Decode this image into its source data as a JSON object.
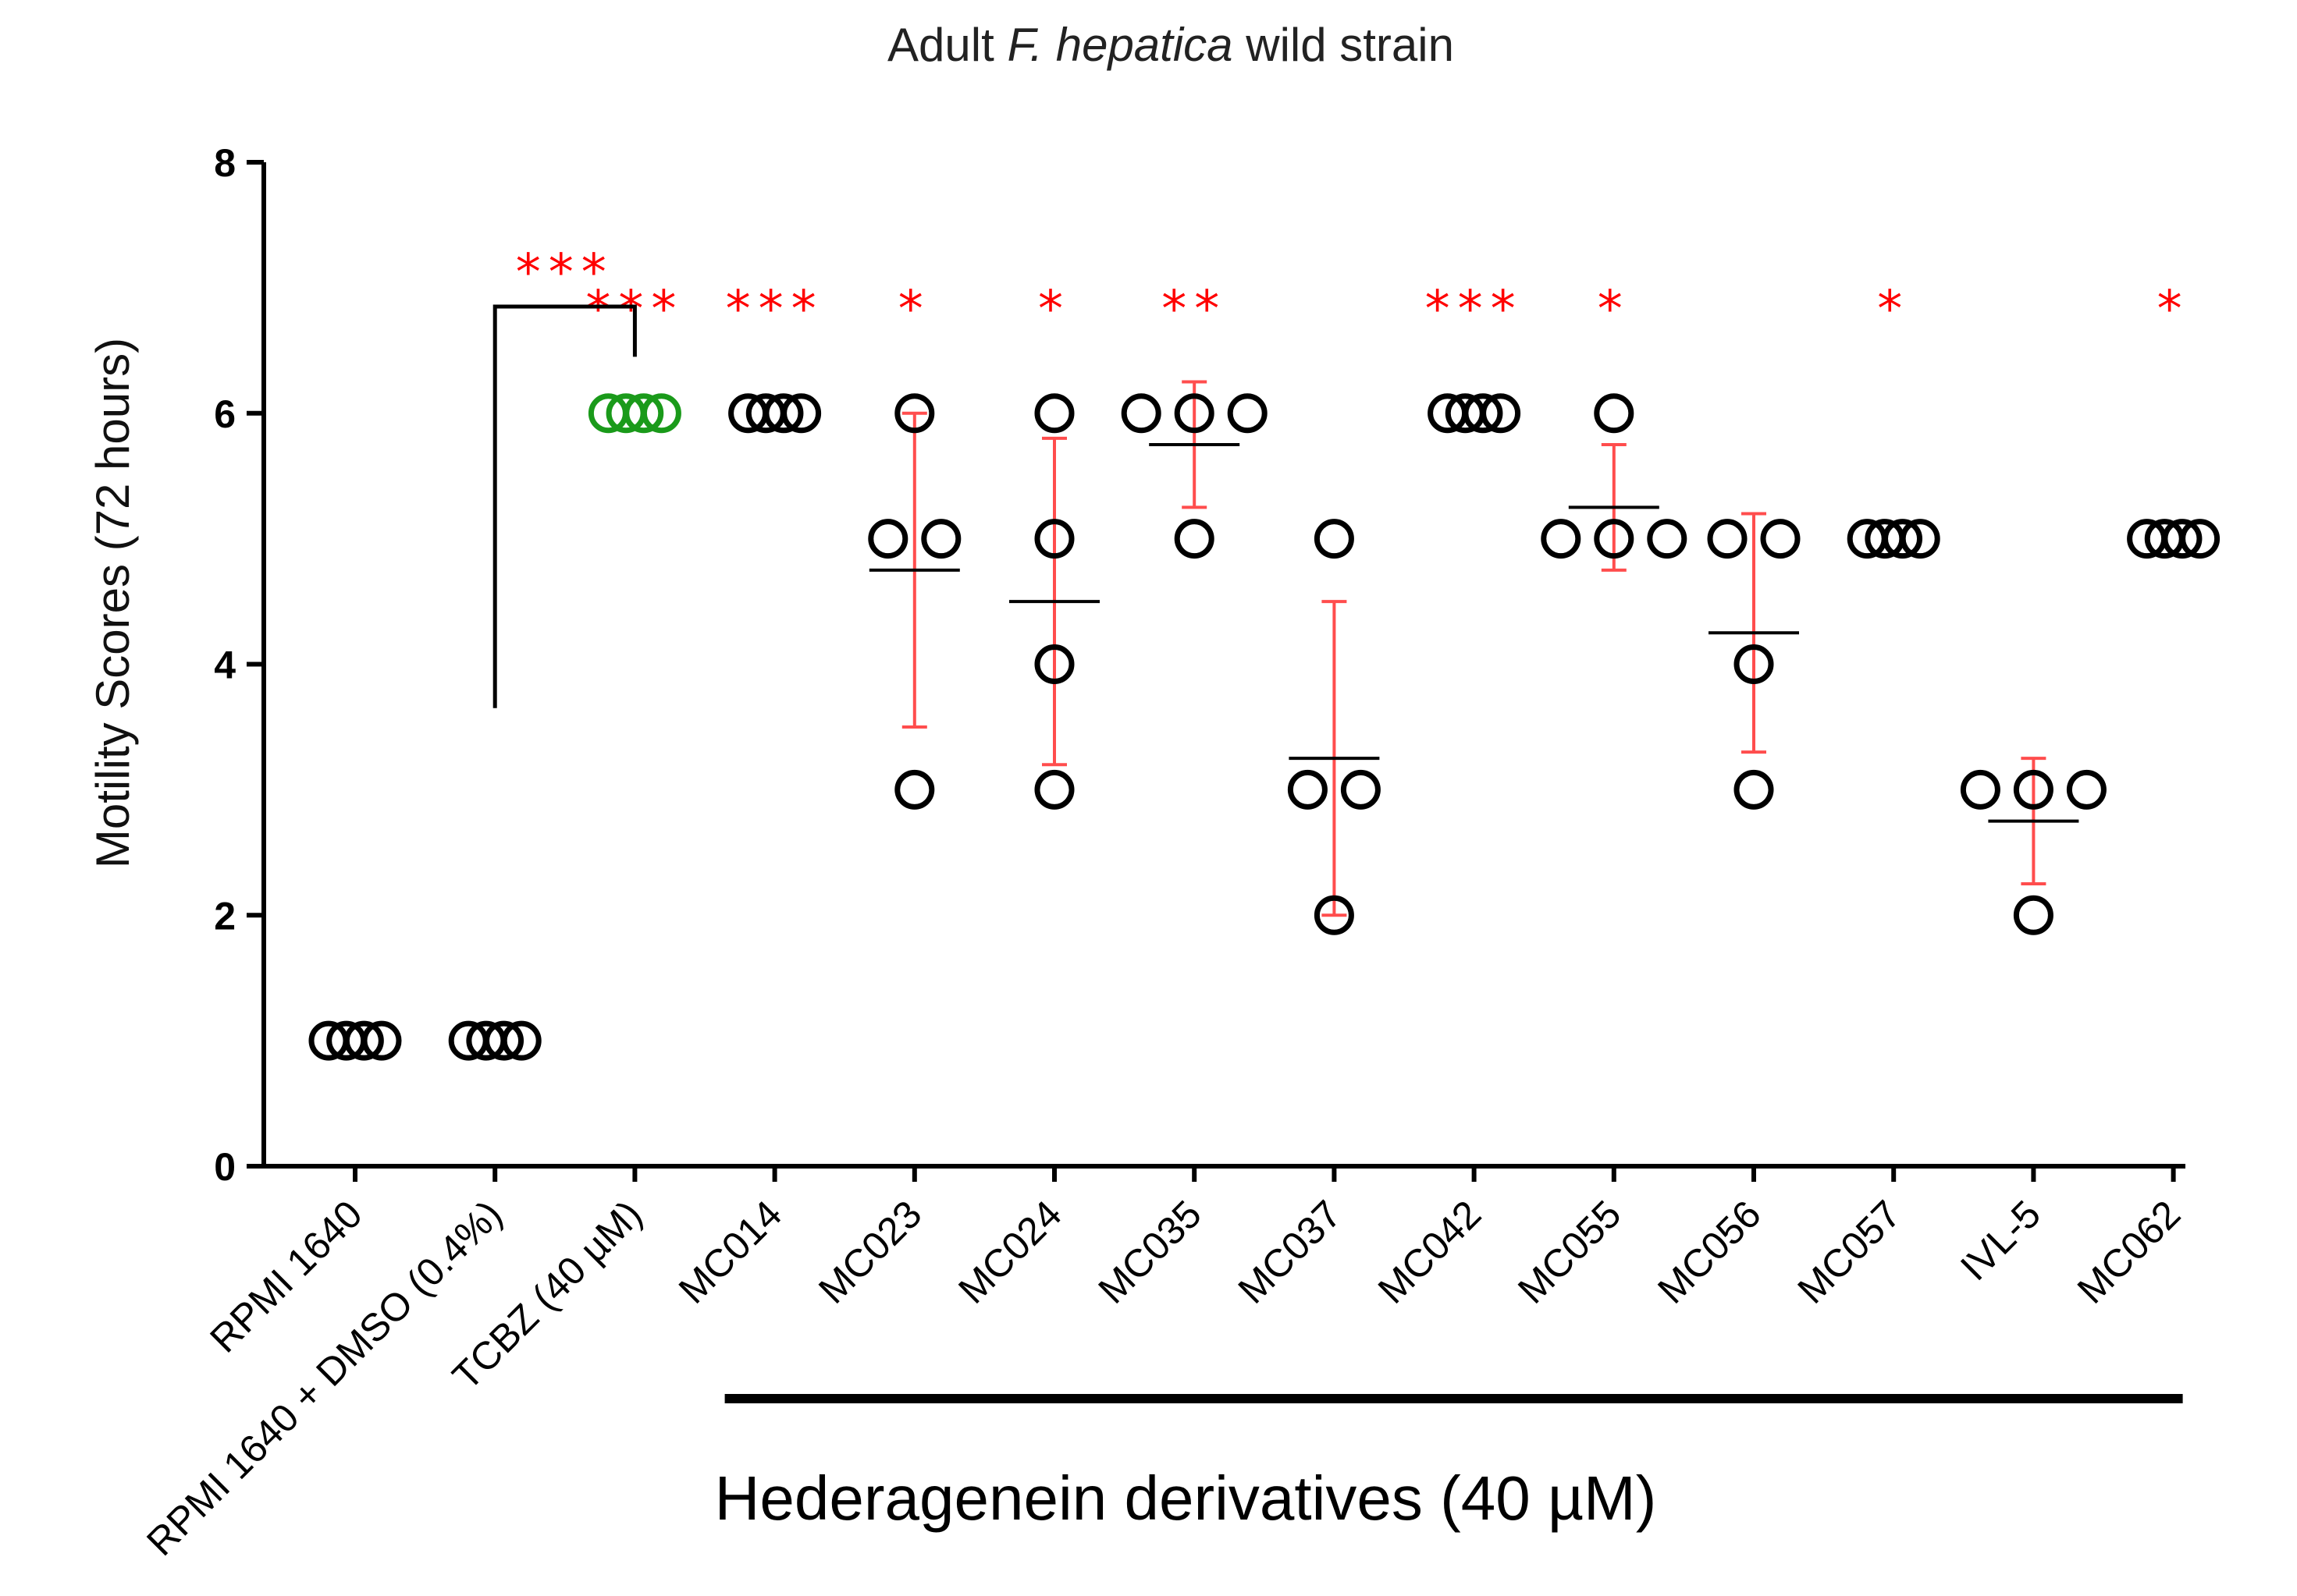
{
  "chart_data": {
    "type": "scatter",
    "title": {
      "prefix": "Adult ",
      "italic1": "F.",
      "space": " ",
      "italic2": "hepatica",
      "suffix": " wild strain"
    },
    "ylabel": "Motility Scores (72 hours)",
    "xlabel": "",
    "ylim": [
      0,
      8
    ],
    "yticks": [
      0,
      2,
      4,
      6,
      8
    ],
    "categories": [
      "RPMI 1640",
      "RPMI 1640 + DMSO (0.4%)",
      "TCBZ (40 µM)",
      "MC014",
      "MC023",
      "MC024",
      "MC035",
      "MC037",
      "MC042",
      "MC055",
      "MC056",
      "MC057",
      "IVL-5",
      "MC062"
    ],
    "series": [
      {
        "name": "RPMI 1640",
        "points": [
          1,
          1,
          1,
          1
        ],
        "mean": null,
        "sd_low": null,
        "sd_high": null,
        "color": "#000000",
        "significance": ""
      },
      {
        "name": "RPMI 1640 + DMSO (0.4%)",
        "points": [
          1,
          1,
          1,
          1
        ],
        "mean": null,
        "sd_low": null,
        "sd_high": null,
        "color": "#000000",
        "significance": ""
      },
      {
        "name": "TCBZ (40 µM)",
        "points": [
          6,
          6,
          6,
          6
        ],
        "mean": null,
        "sd_low": null,
        "sd_high": null,
        "color": "#1a9a1a",
        "significance": "***"
      },
      {
        "name": "MC014",
        "points": [
          6,
          6,
          6,
          6
        ],
        "mean": null,
        "sd_low": null,
        "sd_high": null,
        "color": "#000000",
        "significance": "***"
      },
      {
        "name": "MC023",
        "points": [
          6,
          5,
          5,
          3
        ],
        "mean": 4.75,
        "sd_low": 3.5,
        "sd_high": 6.0,
        "color": "#000000",
        "significance": "*"
      },
      {
        "name": "MC024",
        "points": [
          6,
          5,
          4,
          3
        ],
        "mean": 4.5,
        "sd_low": 3.2,
        "sd_high": 5.8,
        "color": "#000000",
        "significance": "*"
      },
      {
        "name": "MC035",
        "points": [
          6,
          6,
          6,
          5
        ],
        "mean": 5.75,
        "sd_low": 5.25,
        "sd_high": 6.25,
        "color": "#000000",
        "significance": "**"
      },
      {
        "name": "MC037",
        "points": [
          5,
          3,
          3,
          2
        ],
        "mean": 3.25,
        "sd_low": 2.0,
        "sd_high": 4.5,
        "color": "#000000",
        "significance": ""
      },
      {
        "name": "MC042",
        "points": [
          6,
          6,
          6,
          6
        ],
        "mean": null,
        "sd_low": null,
        "sd_high": null,
        "color": "#000000",
        "significance": "***"
      },
      {
        "name": "MC055",
        "points": [
          6,
          5,
          5,
          5
        ],
        "mean": 5.25,
        "sd_low": 4.75,
        "sd_high": 5.75,
        "color": "#000000",
        "significance": "*"
      },
      {
        "name": "MC056",
        "points": [
          5,
          5,
          4,
          3
        ],
        "mean": 4.25,
        "sd_low": 3.3,
        "sd_high": 5.2,
        "color": "#000000",
        "significance": ""
      },
      {
        "name": "MC057",
        "points": [
          5,
          5,
          5,
          5
        ],
        "mean": null,
        "sd_low": null,
        "sd_high": null,
        "color": "#000000",
        "significance": "*"
      },
      {
        "name": "IVL-5",
        "points": [
          3,
          3,
          3,
          2
        ],
        "mean": 2.75,
        "sd_low": 2.25,
        "sd_high": 3.25,
        "color": "#000000",
        "significance": ""
      },
      {
        "name": "MC062",
        "points": [
          5,
          5,
          5,
          5
        ],
        "mean": null,
        "sd_low": null,
        "sd_high": null,
        "color": "#000000",
        "significance": "*"
      }
    ],
    "comparison": {
      "from": "RPMI 1640 + DMSO (0.4%)",
      "to": "TCBZ (40 µM)",
      "label": "***"
    },
    "group_bracket": {
      "label": "Hederagenein  derivatives (40 µM)",
      "from": "MC014",
      "to": "MC062"
    },
    "colors": {
      "points": "#000000",
      "tcbz": "#1a9a1a",
      "error_bars": "#ff4d4d",
      "significance": "#ff0000",
      "mean_line": "#000000"
    }
  }
}
